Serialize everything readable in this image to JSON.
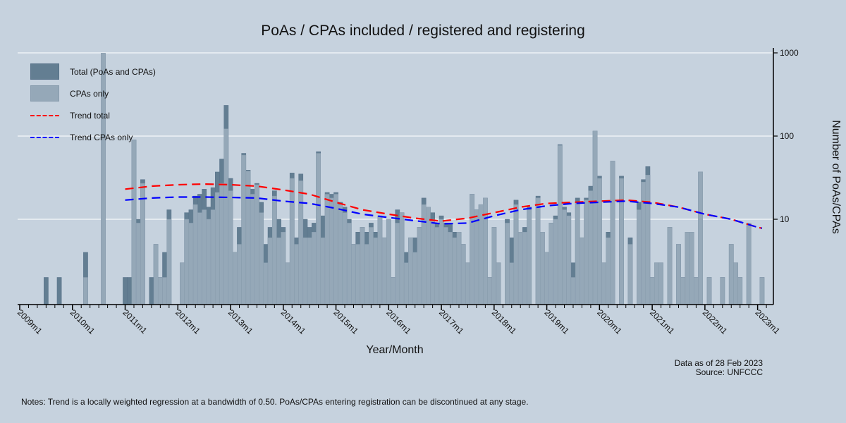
{
  "chart_data": {
    "type": "bar",
    "title": "PoAs / CPAs included / registered and registering",
    "xlabel": "Year/Month",
    "ylabel": "Number of PoAs/CPAs",
    "yscale": "log",
    "ylim": [
      1,
      1000
    ],
    "yticks": [
      "10",
      "100",
      "1000"
    ],
    "ytick_values": [
      10,
      100,
      1000
    ],
    "y_axis_side": "right",
    "grid": true,
    "legend_position": "top-left",
    "xticks": [
      "2009m1",
      "2010m1",
      "2011m1",
      "2012m1",
      "2013m1",
      "2014m1",
      "2015m1",
      "2016m1",
      "2017m1",
      "2018m1",
      "2019m1",
      "2020m1",
      "2021m1",
      "2022m1",
      "2023m1"
    ],
    "x_first": "2009m1",
    "x_last": "2023m2",
    "series": [
      {
        "name": "Total (PoAs and CPAs)",
        "kind": "bar",
        "color": "#637e92",
        "values": [
          0,
          0,
          0,
          0,
          0,
          0,
          2,
          0,
          0,
          2,
          0,
          0,
          0,
          0,
          0,
          4,
          0,
          0,
          0,
          990,
          0,
          0,
          0,
          0,
          2,
          2,
          90,
          10,
          30,
          0,
          2,
          5,
          2,
          4,
          13,
          0,
          0,
          3,
          12,
          13,
          19,
          20,
          23,
          14,
          24,
          37,
          53,
          234,
          31,
          4,
          8,
          62,
          39,
          23,
          27,
          16,
          5,
          8,
          22,
          10,
          8,
          3,
          36,
          6,
          35,
          10,
          8,
          9,
          65,
          11,
          21,
          20,
          21,
          16,
          14,
          10,
          5,
          7,
          8,
          7,
          9,
          7,
          11,
          6,
          10,
          2,
          13,
          12,
          4,
          6,
          6,
          8,
          18,
          14,
          12,
          9,
          11,
          9,
          9,
          7,
          7,
          5,
          3,
          20,
          13,
          15,
          18,
          2,
          8,
          3,
          0,
          10,
          6,
          17,
          7,
          8,
          14,
          0,
          19,
          7,
          4,
          9,
          11,
          79,
          14,
          12,
          3,
          18,
          6,
          18,
          25,
          115,
          33,
          3,
          7,
          50,
          0,
          33,
          0,
          6,
          0,
          16,
          30,
          43,
          2,
          3,
          3,
          0,
          8,
          0,
          5,
          2,
          7,
          7,
          2,
          37,
          0,
          2,
          0,
          0,
          2,
          0,
          5,
          3,
          2,
          0,
          9,
          0,
          0,
          2
        ]
      },
      {
        "name": "CPAs only",
        "kind": "bar",
        "color": "#95a8b8",
        "values": [
          0,
          0,
          0,
          0,
          0,
          0,
          0,
          0,
          0,
          0,
          0,
          0,
          0,
          0,
          0,
          2,
          0,
          0,
          0,
          990,
          0,
          0,
          0,
          0,
          0,
          0,
          90,
          9,
          27,
          0,
          0,
          5,
          2,
          2,
          10,
          0,
          0,
          3,
          10,
          9,
          15,
          12,
          13,
          10,
          13,
          21,
          27,
          122,
          22,
          4,
          5,
          59,
          38,
          20,
          26,
          12,
          3,
          6,
          19,
          6,
          7,
          3,
          31,
          5,
          29,
          6,
          6,
          7,
          62,
          6,
          20,
          18,
          20,
          15,
          12,
          9,
          5,
          5,
          8,
          5,
          8,
          6,
          11,
          6,
          10,
          2,
          9,
          12,
          3,
          6,
          4,
          8,
          15,
          14,
          10,
          8,
          10,
          8,
          7,
          6,
          7,
          5,
          3,
          20,
          13,
          15,
          18,
          2,
          8,
          3,
          0,
          9,
          3,
          15,
          7,
          7,
          13,
          0,
          18,
          7,
          4,
          9,
          10,
          77,
          13,
          11,
          2,
          16,
          6,
          17,
          22,
          115,
          31,
          3,
          6,
          50,
          0,
          31,
          0,
          5,
          0,
          13,
          28,
          34,
          2,
          3,
          3,
          0,
          8,
          0,
          5,
          2,
          7,
          7,
          2,
          37,
          0,
          2,
          0,
          0,
          2,
          0,
          5,
          3,
          2,
          0,
          9,
          0,
          0,
          2
        ]
      },
      {
        "name": "Trend total",
        "kind": "line",
        "color": "#ff0000",
        "x": [
          "2011m1",
          "2011m7",
          "2012m1",
          "2012m7",
          "2013m1",
          "2013m7",
          "2014m1",
          "2014m7",
          "2015m1",
          "2015m7",
          "2016m1",
          "2016m7",
          "2017m1",
          "2017m7",
          "2018m1",
          "2018m7",
          "2019m1",
          "2019m7",
          "2020m1",
          "2020m7",
          "2021m1",
          "2021m7",
          "2022m1",
          "2022m7",
          "2023m1",
          "2023m2"
        ],
        "values": [
          23,
          25,
          26,
          26.5,
          26,
          25,
          22.5,
          20,
          16,
          13,
          11.5,
          10.3,
          9.5,
          10.3,
          12,
          14,
          15.5,
          16,
          16.5,
          17,
          16,
          14,
          11.5,
          10,
          8,
          7.8
        ]
      },
      {
        "name": "Trend CPAs only",
        "kind": "line",
        "color": "#0000ff",
        "x": [
          "2011m1",
          "2011m7",
          "2012m1",
          "2012m7",
          "2013m1",
          "2013m7",
          "2014m1",
          "2014m7",
          "2015m1",
          "2015m7",
          "2016m1",
          "2016m7",
          "2017m1",
          "2017m7",
          "2018m1",
          "2018m7",
          "2019m1",
          "2019m7",
          "2020m1",
          "2020m7",
          "2021m1",
          "2021m7",
          "2022m1",
          "2022m7",
          "2023m1",
          "2023m2"
        ],
        "values": [
          17,
          18,
          18.5,
          18.5,
          18.3,
          18,
          16.5,
          15.5,
          13.5,
          11.5,
          10.5,
          9.6,
          8.8,
          9,
          11,
          13,
          14.5,
          15.5,
          16,
          16.5,
          15.5,
          14,
          11.5,
          10,
          8,
          7.8
        ]
      }
    ]
  },
  "data_note": "Data as of 28 Feb 2023",
  "source": "Source: UNFCCC",
  "footnote": "Notes: Trend is a locally weighted regression at a bandwidth of 0.50. PoAs/CPAs entering registration can be discontinued at any stage."
}
